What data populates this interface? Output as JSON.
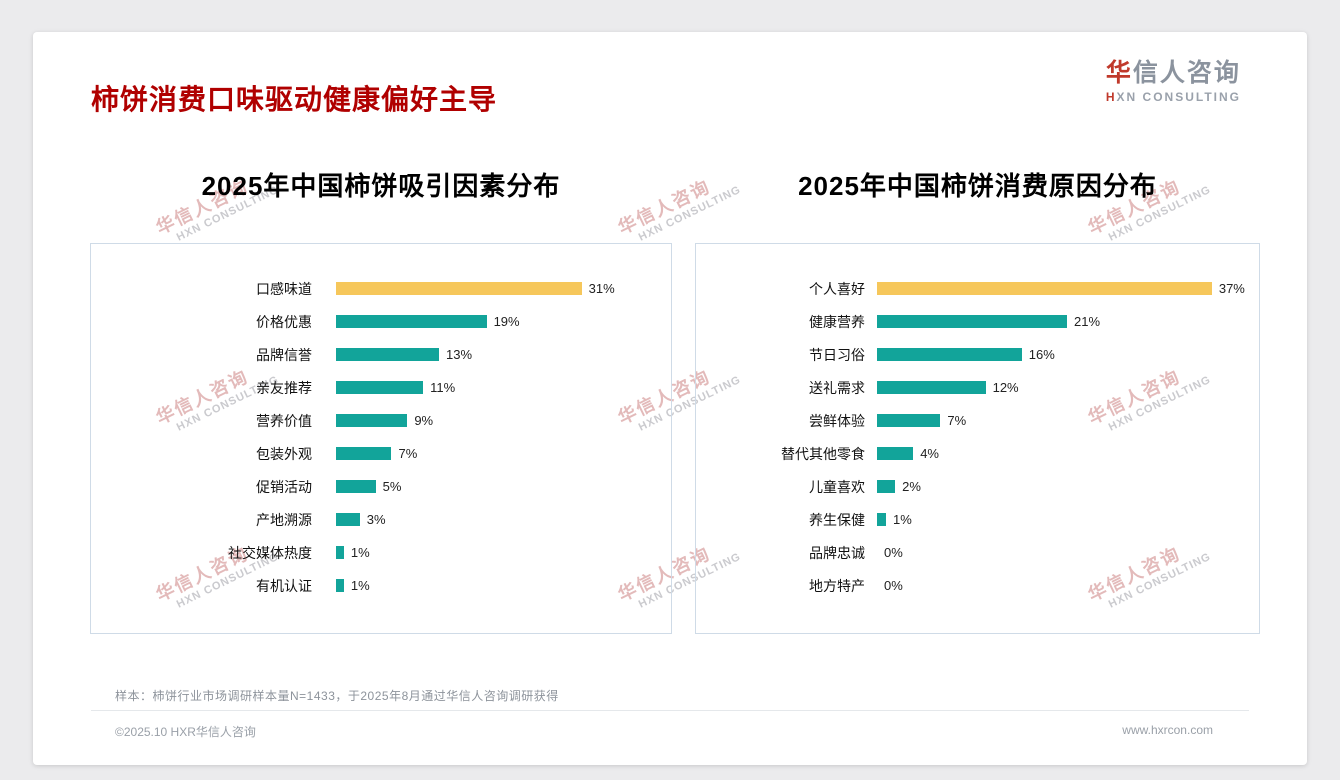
{
  "page": {
    "title": "柿饼消费口味驱动健康偏好主导",
    "note": "样本：柿饼行业市场调研样本量N=1433，于2025年8月通过华信人咨询调研获得",
    "footer": {
      "left": "©2025.10 HXR华信人咨询",
      "right": "www.hxrcon.com"
    },
    "watermark": {
      "cn": "华信人咨询",
      "en": "HXN CONSULTING"
    }
  },
  "logo": {
    "cn_accent": "华",
    "cn_rest": "信人咨询",
    "en_accent": "H",
    "en_rest": "XN CONSULTING"
  },
  "colors": {
    "accent_red": "#B00000",
    "teal": "#12A49A",
    "gold": "#F6C75B",
    "panel_border": "#CFDBE7"
  },
  "chart_data": [
    {
      "type": "bar",
      "orientation": "horizontal",
      "title": "2025年中国柿饼吸引因素分布",
      "unit": "%",
      "xlim": [
        0,
        40
      ],
      "grid": false,
      "legend": false,
      "categories": [
        "口感味道",
        "价格优惠",
        "品牌信誉",
        "亲友推荐",
        "营养价值",
        "包装外观",
        "促销活动",
        "产地溯源",
        "社交媒体热度",
        "有机认证"
      ],
      "values": [
        31,
        19,
        13,
        11,
        9,
        7,
        5,
        3,
        1,
        1
      ],
      "highlight_index": 0,
      "highlight_color": "#F6C75B",
      "bar_color": "#12A49A"
    },
    {
      "type": "bar",
      "orientation": "horizontal",
      "title": "2025年中国柿饼消费原因分布",
      "unit": "%",
      "xlim": [
        0,
        40
      ],
      "grid": false,
      "legend": false,
      "categories": [
        "个人喜好",
        "健康营养",
        "节日习俗",
        "送礼需求",
        "尝鲜体验",
        "替代其他零食",
        "儿童喜欢",
        "养生保健",
        "品牌忠诚",
        "地方特产"
      ],
      "values": [
        37,
        21,
        16,
        12,
        7,
        4,
        2,
        1,
        0,
        0
      ],
      "highlight_index": 0,
      "highlight_color": "#F6C75B",
      "bar_color": "#12A49A"
    }
  ]
}
